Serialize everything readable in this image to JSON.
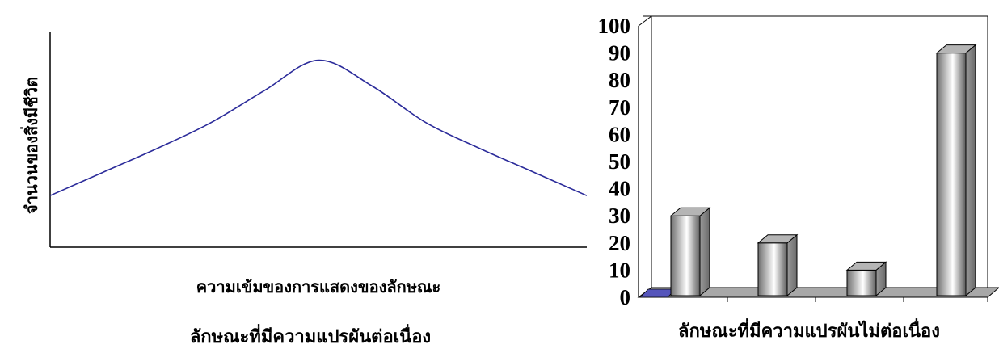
{
  "chart_data": [
    {
      "type": "line",
      "xlabel": "ความเข้มของการแสดงของลักษณะ",
      "ylabel": "จำนวนของสิ่งมีชีวิต",
      "caption": "ลักษณะที่มีความแปรผันต่อเนื่อง",
      "grid": false,
      "series": [
        {
          "x": [
            0,
            0.1,
            0.2,
            0.3,
            0.4,
            0.5,
            0.6,
            0.7,
            0.8,
            0.9,
            1
          ],
          "values": [
            0.24,
            0.35,
            0.46,
            0.58,
            0.73,
            0.87,
            0.75,
            0.58,
            0.46,
            0.35,
            0.24
          ]
        }
      ],
      "colors": {
        "line": "#2b2b9a",
        "axis": "#000000"
      }
    },
    {
      "type": "bar",
      "style": "3d",
      "xlabel": "ลักษณะที่มีความแปรผันไม่ต่อเนื่อง",
      "ylim": [
        0,
        100
      ],
      "yticks": [
        0,
        10,
        20,
        30,
        40,
        50,
        60,
        70,
        80,
        90,
        100
      ],
      "values": [
        30,
        20,
        10,
        90
      ],
      "grid": false,
      "colors": {
        "bar_dark": "#6e6e6e",
        "bar_light": "#ffffff",
        "floor": "#a8a8a8",
        "stub": "#5555bb",
        "axis": "#000000"
      }
    }
  ]
}
